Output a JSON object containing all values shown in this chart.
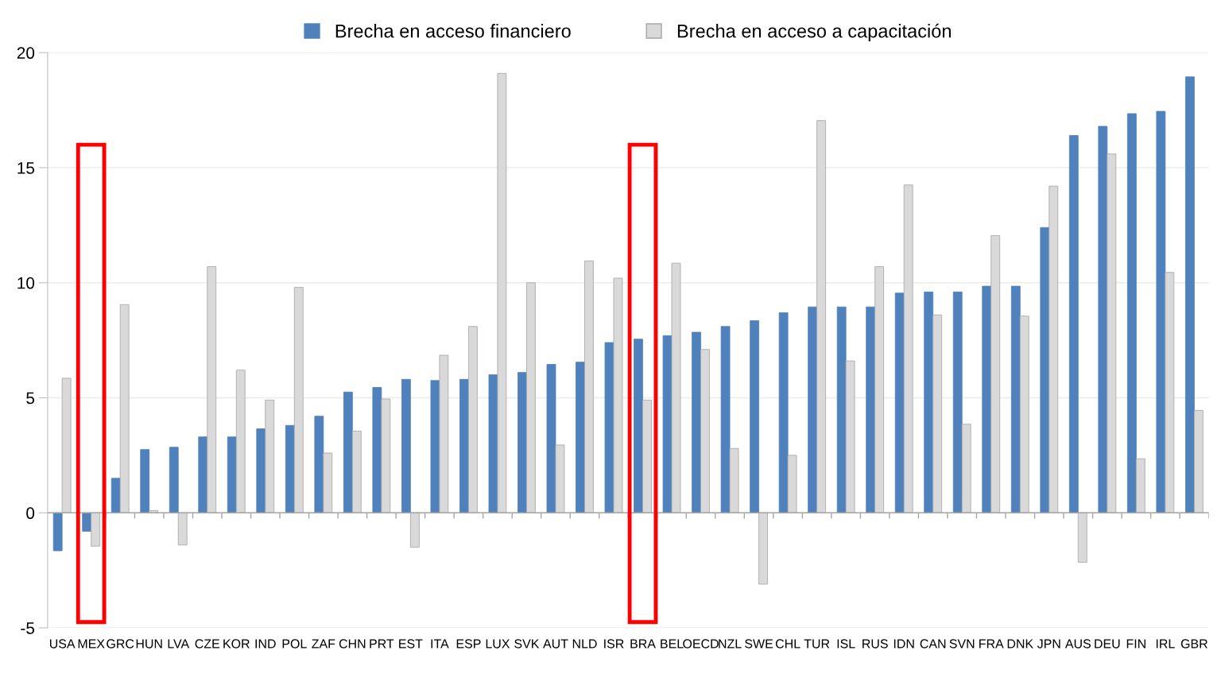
{
  "chart_data": {
    "type": "bar",
    "categories": [
      "USA",
      "MEX",
      "GRC",
      "HUN",
      "LVA",
      "CZE",
      "KOR",
      "IND",
      "POL",
      "ZAF",
      "CHN",
      "PRT",
      "EST",
      "ITA",
      "ESP",
      "LUX",
      "SVK",
      "AUT",
      "NLD",
      "ISR",
      "BRA",
      "BEL",
      "OECD",
      "NZL",
      "SWE",
      "CHL",
      "TUR",
      "ISL",
      "RUS",
      "IDN",
      "CAN",
      "SVN",
      "FRA",
      "DNK",
      "JPN",
      "AUS",
      "DEU",
      "FIN",
      "IRL",
      "GBR"
    ],
    "series": [
      {
        "name": "Brecha en acceso financiero",
        "color": "#4f81bd",
        "values": [
          -1.65,
          -0.8,
          1.5,
          2.75,
          2.85,
          3.3,
          3.3,
          3.65,
          3.8,
          4.2,
          5.25,
          5.45,
          5.8,
          5.75,
          5.8,
          6.0,
          6.1,
          6.45,
          6.55,
          7.4,
          7.55,
          7.7,
          7.85,
          8.1,
          8.35,
          8.7,
          8.95,
          8.95,
          8.95,
          9.55,
          9.6,
          9.6,
          9.85,
          9.85,
          12.4,
          16.4,
          16.8,
          17.35,
          17.45,
          18.95
        ]
      },
      {
        "name": "Brecha en acceso a capacitación",
        "color": "#d9d9d9",
        "values": [
          5.85,
          -1.45,
          9.05,
          0.1,
          -1.4,
          10.7,
          6.2,
          4.9,
          9.8,
          2.6,
          3.55,
          4.95,
          -1.5,
          6.85,
          8.1,
          19.1,
          10.0,
          2.95,
          10.95,
          10.2,
          4.9,
          10.85,
          7.1,
          2.8,
          -3.1,
          2.5,
          17.05,
          6.6,
          10.7,
          14.25,
          8.6,
          3.85,
          12.05,
          8.55,
          14.2,
          -2.15,
          15.6,
          2.35,
          10.45,
          4.45
        ]
      }
    ],
    "ylim": [
      -5,
      20
    ],
    "yticks": [
      -5,
      0,
      5,
      10,
      15,
      20
    ],
    "grid": "y",
    "legend": "top"
  }
}
